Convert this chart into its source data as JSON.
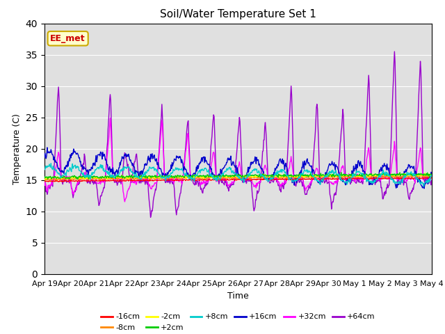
{
  "title": "Soil/Water Temperature Set 1",
  "xlabel": "Time",
  "ylabel": "Temperature (C)",
  "ylim": [
    0,
    40
  ],
  "yticks": [
    0,
    5,
    10,
    15,
    20,
    25,
    30,
    35,
    40
  ],
  "background_color": "#e0e0e0",
  "legend_label": "EE_met",
  "legend_box_color": "#ffffcc",
  "legend_box_border": "#ccaa00",
  "legend_text_color": "#cc0000",
  "series_colors": {
    "-16cm": "#ff0000",
    "-8cm": "#ff8800",
    "-2cm": "#ffff00",
    "+2cm": "#00cc00",
    "+8cm": "#00cccc",
    "+16cm": "#0000cc",
    "+32cm": "#ff00ff",
    "+64cm": "#9900cc"
  },
  "xtick_labels": [
    "Apr 19",
    "Apr 20",
    "Apr 21",
    "Apr 22",
    "Apr 23",
    "Apr 24",
    "Apr 25",
    "Apr 26",
    "Apr 27",
    "Apr 28",
    "Apr 29",
    "Apr 30",
    "May 1",
    "May 2",
    "May 3",
    "May 4"
  ],
  "n_days": 15,
  "pts_per_day": 48
}
